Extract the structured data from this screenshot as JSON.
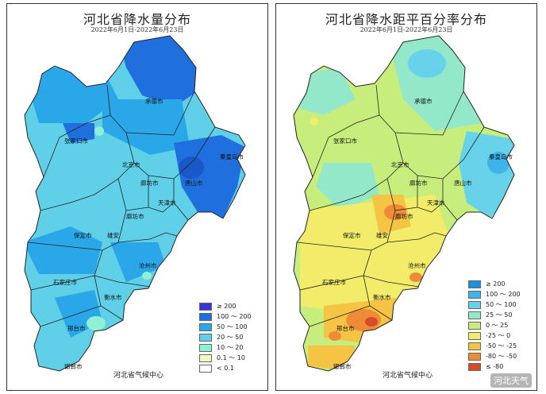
{
  "left_panel": {
    "title": "河北省降水量分布",
    "date_range": "2022年6月1日-2022年6月23日",
    "producer": "河北省气候中心",
    "legend": [
      {
        "label": "≥ 200",
        "color": "#3b2fd6"
      },
      {
        "label": "100 ～ 200",
        "color": "#1f6fde"
      },
      {
        "label": "50 ～ 100",
        "color": "#2aa7e8"
      },
      {
        "label": "20 ～ 50",
        "color": "#5fd0e8"
      },
      {
        "label": "10 ～ 20",
        "color": "#8ff0d4"
      },
      {
        "label": "0.1 ～ 10",
        "color": "#f3f8c0"
      },
      {
        "label": "< 0.1",
        "color": "#ffffff"
      }
    ],
    "cities": [
      "承德市",
      "张家口市",
      "北京市",
      "秦皇岛市",
      "廊坊市",
      "唐山市",
      "天津市",
      "廊坊市",
      "保定市",
      "雄安",
      "沧州市",
      "石家庄市",
      "衡水市",
      "邢台市",
      "邯郸市"
    ]
  },
  "right_panel": {
    "title": "河北省降水距平百分率分布",
    "date_range": "2022年6月1日-2022年6月23日",
    "producer": "河北省气候中心",
    "legend": [
      {
        "label": "≥ 200",
        "color": "#1e8fe0"
      },
      {
        "label": "100 ～ 200",
        "color": "#3fb4ea"
      },
      {
        "label": "50 ～ 100",
        "color": "#68d2ea"
      },
      {
        "label": "25 ～ 50",
        "color": "#92e8c8"
      },
      {
        "label": "0 ～ 25",
        "color": "#c7ee7c"
      },
      {
        "label": "-25 ～ 0",
        "color": "#f2ec6a"
      },
      {
        "label": "-50 ～ -25",
        "color": "#f5c445"
      },
      {
        "label": "-80 ～ -50",
        "color": "#ef8b36"
      },
      {
        "label": "≤ -80",
        "color": "#d84a2a"
      }
    ],
    "cities": [
      "承德市",
      "张家口市",
      "北京市",
      "秦皇岛市",
      "廊坊市",
      "唐山市",
      "天津市",
      "廊坊市",
      "保定市",
      "雄安",
      "沧州市",
      "石家庄市",
      "衡水市",
      "邢台市",
      "邯郸市"
    ]
  },
  "watermark": "河北天气",
  "colors": {
    "left_base": "#5fd0e8",
    "left_mid": "#2aa7e8",
    "left_high": "#1f6fde",
    "right_base": "#c7ee7c",
    "right_blue": "#68d2ea",
    "right_yellow": "#f2ec6a",
    "right_orange": "#f5c445",
    "right_red": "#ef8b36"
  }
}
